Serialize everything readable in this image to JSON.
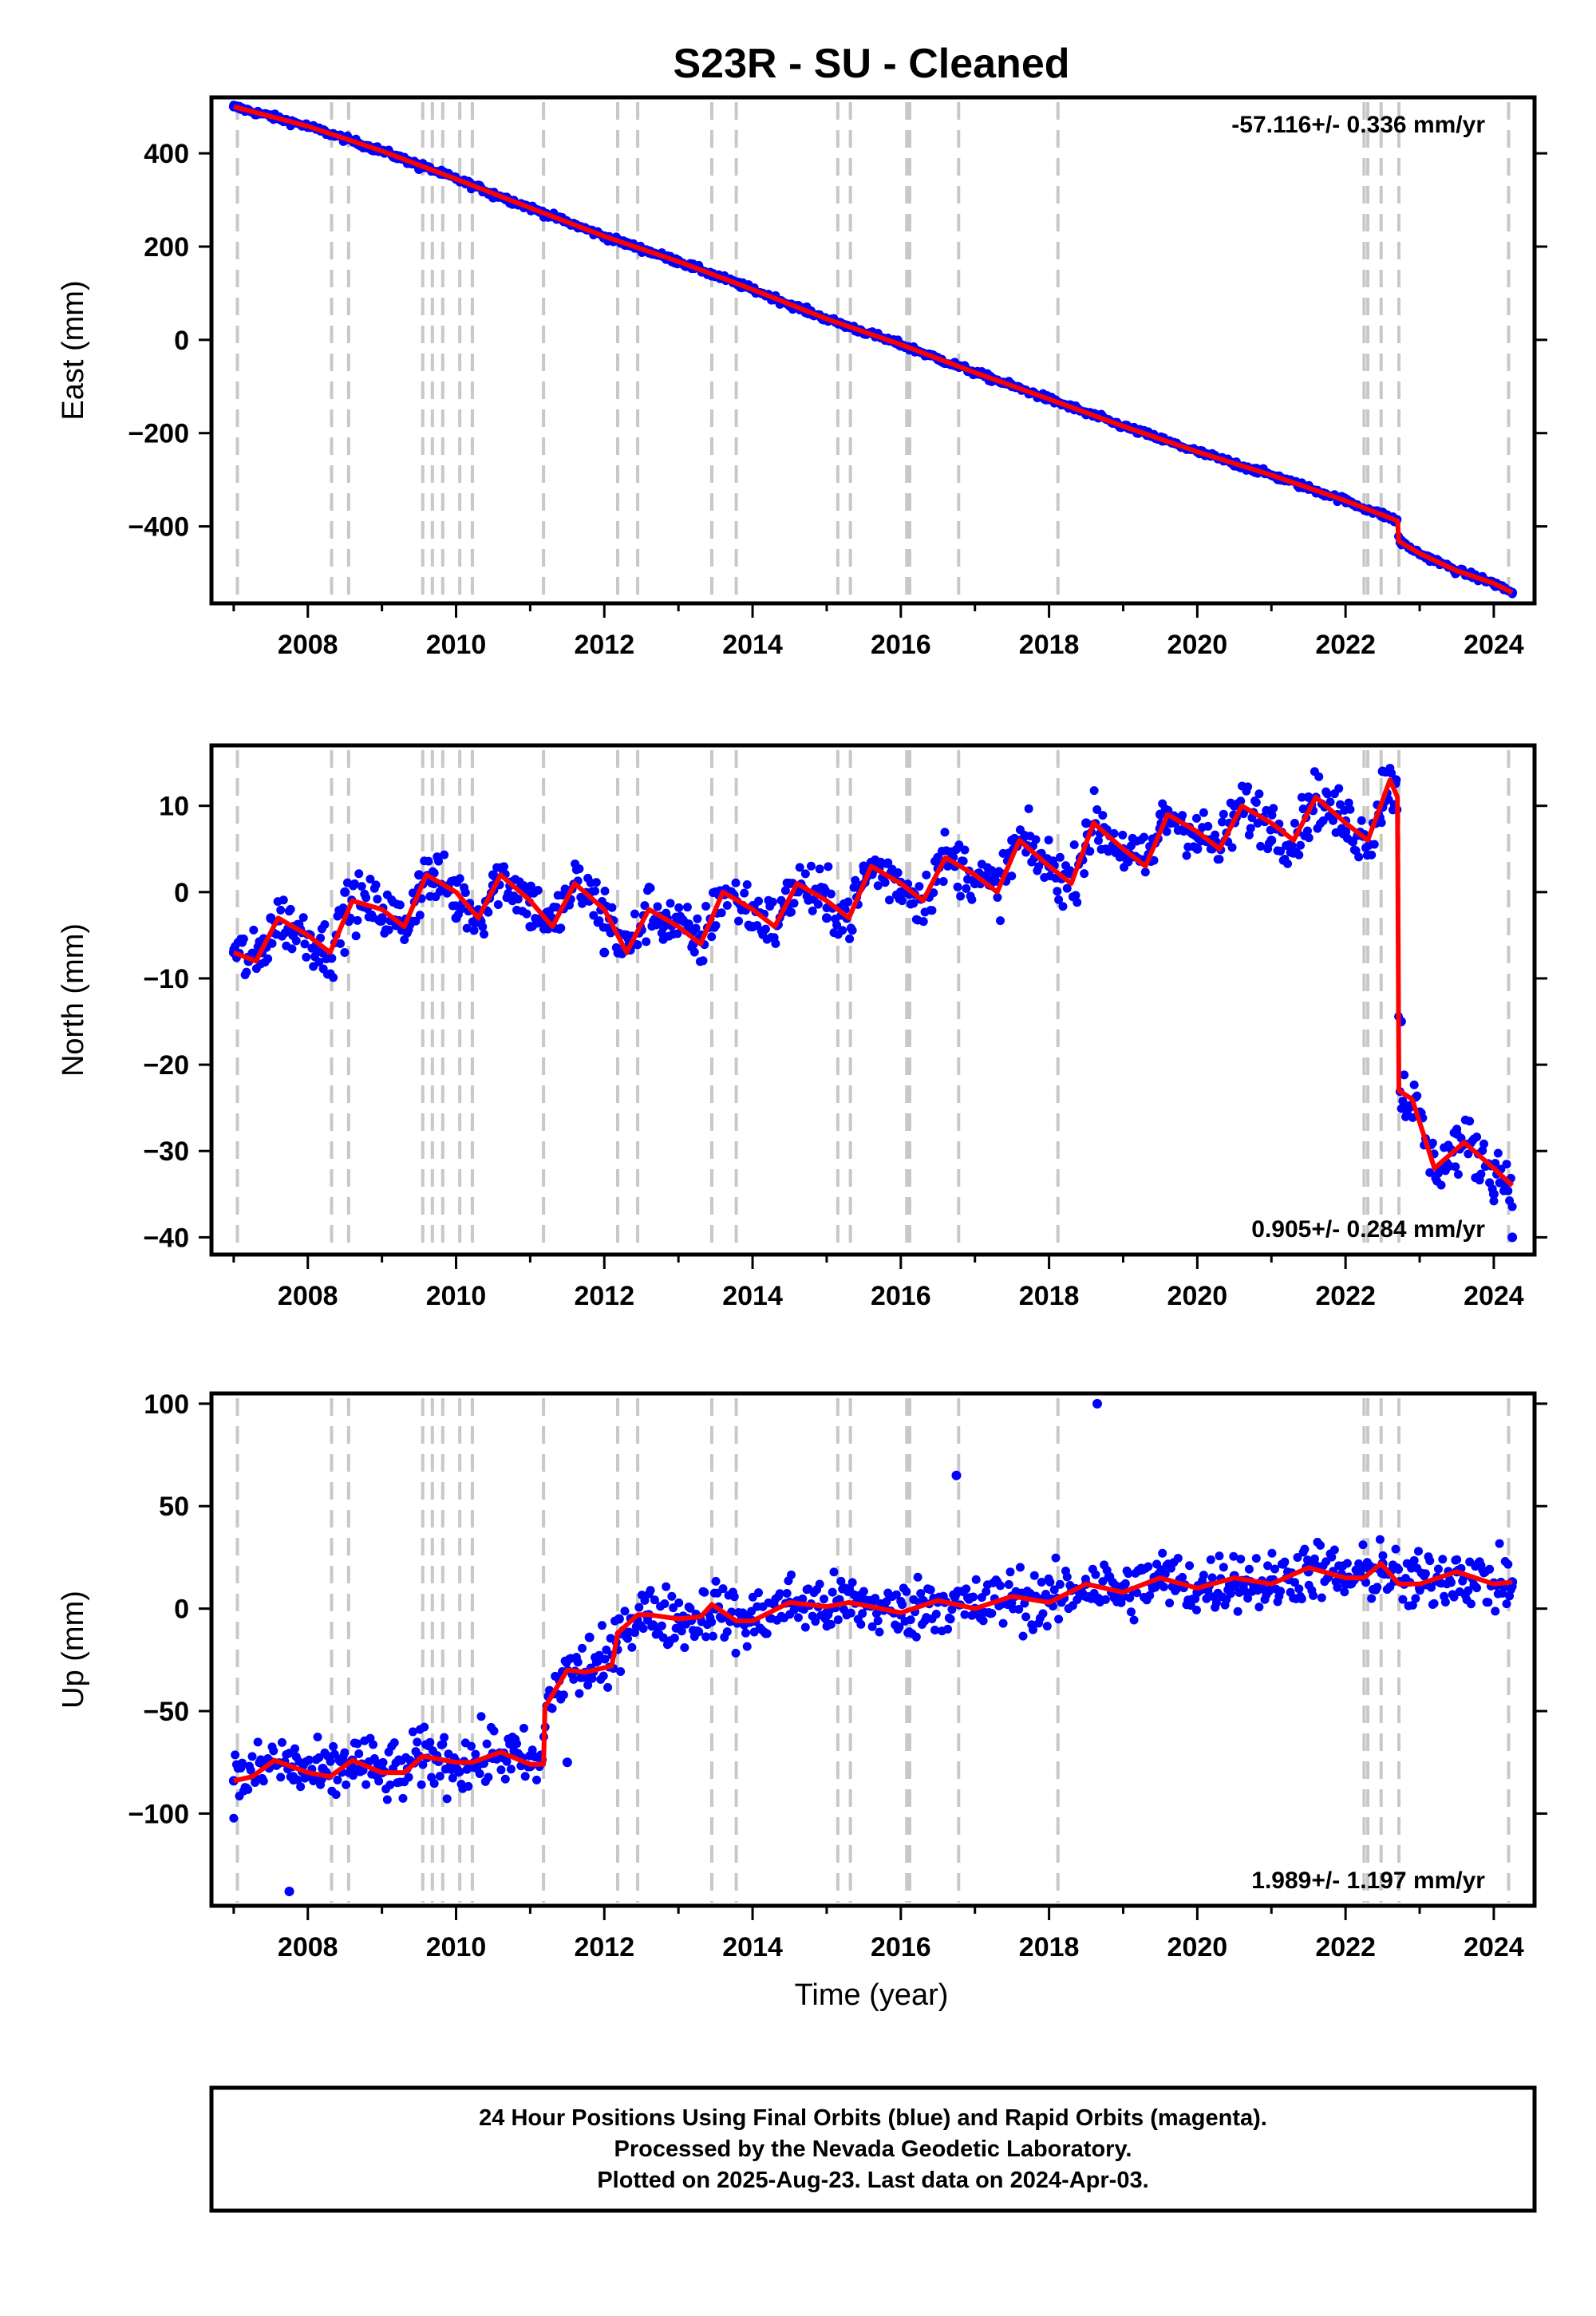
{
  "title": "S23R  - SU - Cleaned",
  "x_axis_label": "Time (year)",
  "colors": {
    "final_orbits": "#0000ff",
    "model": "#ff0000",
    "events": "#c8c8c8",
    "frame": "#000000"
  },
  "footer": {
    "line1": "24 Hour Positions Using Final Orbits (blue) and Rapid Orbits (magenta).",
    "line2": "Processed by the Nevada Geodetic Laboratory.",
    "line3": "Plotted on 2025-Aug-23. Last data on 2024-Apr-03."
  },
  "chart_data": [
    {
      "type": "scatter",
      "ylabel": "East (mm)",
      "rate_label": "-57.116+/- 0.336 mm/yr",
      "rate_position": "top-right",
      "xlim": [
        2006.7,
        2024.55
      ],
      "ylim": [
        -565,
        520
      ],
      "x_ticks": [
        2008,
        2010,
        2012,
        2014,
        2016,
        2018,
        2020,
        2022,
        2024
      ],
      "y_ticks": [
        400,
        200,
        0,
        -200,
        -400
      ],
      "y_tick_labels": [
        "400",
        "200",
        "0",
        "−200",
        "−400"
      ],
      "event_lines": [
        2007.05,
        2008.32,
        2008.55,
        2009.55,
        2009.68,
        2009.82,
        2010.05,
        2010.22,
        2011.18,
        2012.18,
        2012.45,
        2013.45,
        2013.78,
        2015.15,
        2015.32,
        2016.08,
        2016.12,
        2016.78,
        2018.12,
        2022.25,
        2022.3,
        2022.48,
        2022.72,
        2024.2
      ],
      "series": [
        {
          "kind": "points",
          "x": [
            2007.0,
            2007.5,
            2008.0,
            2008.5,
            2009.0,
            2009.5,
            2010.0,
            2010.5,
            2011.0,
            2011.5,
            2012.0,
            2012.5,
            2013.0,
            2013.5,
            2014.0,
            2014.5,
            2015.0,
            2015.5,
            2016.0,
            2016.5,
            2017.0,
            2017.5,
            2018.0,
            2018.5,
            2019.0,
            2019.5,
            2020.0,
            2020.5,
            2021.0,
            2021.5,
            2022.0,
            2022.5,
            2022.68,
            2022.75,
            2023.0,
            2023.5,
            2024.0,
            2024.25
          ],
          "y": [
            500,
            482,
            456,
            428,
            405,
            366,
            345,
            305,
            282,
            252,
            222,
            192,
            170,
            136,
            108,
            73,
            43,
            15,
            -10,
            -42,
            -72,
            -100,
            -125,
            -160,
            -185,
            -212,
            -240,
            -270,
            -290,
            -320,
            -345,
            -370,
            -390,
            -430,
            -460,
            -495,
            -523,
            -542
          ]
        },
        {
          "kind": "model",
          "x": [
            2007.0,
            2008.0,
            2009.0,
            2010.0,
            2011.0,
            2012.0,
            2013.0,
            2014.0,
            2015.0,
            2016.0,
            2017.0,
            2018.0,
            2019.0,
            2020.0,
            2021.0,
            2022.0,
            2022.7,
            2022.72,
            2023.0,
            2023.5,
            2024.0,
            2024.25
          ],
          "y": [
            500,
            458,
            405,
            345,
            283,
            222,
            168,
            108,
            45,
            -10,
            -70,
            -127,
            -185,
            -240,
            -290,
            -345,
            -388,
            -432,
            -458,
            -495,
            -522,
            -542
          ]
        }
      ]
    },
    {
      "type": "scatter",
      "ylabel": "North (mm)",
      "rate_label": "0.905+/- 0.284 mm/yr",
      "rate_position": "bottom-right",
      "xlim": [
        2006.7,
        2024.55
      ],
      "ylim": [
        -42,
        17
      ],
      "x_ticks": [
        2008,
        2010,
        2012,
        2014,
        2016,
        2018,
        2020,
        2022,
        2024
      ],
      "y_ticks": [
        10,
        0,
        -10,
        -20,
        -30,
        -40
      ],
      "y_tick_labels": [
        "10",
        "0",
        "−10",
        "−20",
        "−30",
        "−40"
      ],
      "event_lines": [
        2007.05,
        2008.32,
        2008.55,
        2009.55,
        2009.68,
        2009.82,
        2010.05,
        2010.22,
        2011.18,
        2012.18,
        2012.45,
        2013.45,
        2013.78,
        2015.15,
        2015.32,
        2016.08,
        2016.12,
        2016.78,
        2018.12,
        2022.25,
        2022.3,
        2022.48,
        2022.72,
        2024.2
      ],
      "series": [
        {
          "kind": "points",
          "x": [
            2007.0,
            2007.2,
            2007.5,
            2007.8,
            2008.2,
            2008.5,
            2009.0,
            2009.5,
            2009.7,
            2010.0,
            2010.5,
            2011.0,
            2011.5,
            2012.0,
            2012.3,
            2012.8,
            2013.2,
            2013.5,
            2014.0,
            2014.5,
            2015.0,
            2015.5,
            2016.0,
            2016.5,
            2017.0,
            2017.5,
            2018.0,
            2018.5,
            2019.0,
            2019.5,
            2020.0,
            2020.5,
            2021.0,
            2021.5,
            2022.0,
            2022.5,
            2022.68,
            2022.75,
            2023.0,
            2023.3,
            2023.5,
            2023.8,
            2024.0,
            2024.25
          ],
          "y": [
            -7,
            -8,
            -3,
            -5,
            -7,
            0,
            -3,
            2,
            1,
            -3,
            2,
            -4,
            0,
            -7,
            -5,
            -4,
            -6,
            0,
            -4,
            1,
            -3,
            3,
            0,
            4,
            1,
            6,
            3,
            8,
            5,
            9,
            5,
            10,
            6,
            11,
            7,
            14,
            13,
            -15,
            -26,
            -32,
            -28,
            -33,
            -35,
            -40
          ]
        },
        {
          "kind": "model",
          "x": [
            2007.0,
            2007.3,
            2007.6,
            2008.0,
            2008.3,
            2008.6,
            2009.0,
            2009.3,
            2009.6,
            2010.0,
            2010.3,
            2010.6,
            2011.0,
            2011.3,
            2011.6,
            2012.0,
            2012.3,
            2012.6,
            2013.0,
            2013.3,
            2013.6,
            2014.0,
            2014.3,
            2014.6,
            2015.0,
            2015.3,
            2015.6,
            2016.0,
            2016.3,
            2016.6,
            2017.0,
            2017.3,
            2017.6,
            2018.0,
            2018.3,
            2018.6,
            2019.0,
            2019.3,
            2019.6,
            2020.0,
            2020.3,
            2020.6,
            2021.0,
            2021.3,
            2021.6,
            2022.0,
            2022.3,
            2022.6,
            2022.7,
            2022.72,
            2022.9,
            2023.2,
            2023.6,
            2024.0,
            2024.25
          ],
          "y": [
            -7,
            -8,
            -3,
            -5,
            -7,
            -1,
            -2,
            -4,
            2,
            0,
            -3,
            2,
            -1,
            -4,
            1,
            -2,
            -7,
            -2,
            -4,
            -6,
            0,
            -2,
            -4,
            1,
            -1,
            -3,
            3,
            1,
            -1,
            4,
            2,
            0,
            6,
            3,
            1,
            8,
            5,
            3,
            9,
            7,
            5,
            10,
            8,
            6,
            11,
            8,
            6,
            13,
            11,
            -23,
            -24,
            -32,
            -29,
            -32,
            -34
          ]
        }
      ]
    },
    {
      "type": "scatter",
      "ylabel": "Up (mm)",
      "rate_label": "1.989+/- 1.197 mm/yr",
      "rate_position": "bottom-right",
      "xlim": [
        2006.7,
        2024.55
      ],
      "ylim": [
        -145,
        105
      ],
      "x_ticks": [
        2008,
        2010,
        2012,
        2014,
        2016,
        2018,
        2020,
        2022,
        2024
      ],
      "y_ticks": [
        100,
        50,
        0,
        -50,
        -100
      ],
      "y_tick_labels": [
        "100",
        "50",
        "0",
        "−50",
        "−100"
      ],
      "event_lines": [
        2007.05,
        2008.32,
        2008.55,
        2009.55,
        2009.68,
        2009.82,
        2010.05,
        2010.22,
        2011.18,
        2012.18,
        2012.45,
        2013.45,
        2013.78,
        2015.15,
        2015.32,
        2016.08,
        2016.12,
        2016.78,
        2018.12,
        2022.25,
        2022.3,
        2022.48,
        2022.72,
        2024.2
      ],
      "series": [
        {
          "kind": "points",
          "x": [
            2007.0,
            2007.4,
            2007.8,
            2008.2,
            2008.6,
            2009.0,
            2009.5,
            2010.0,
            2010.5,
            2011.0,
            2011.5,
            2011.8,
            2012.2,
            2012.6,
            2013.0,
            2013.5,
            2014.0,
            2014.5,
            2015.0,
            2015.5,
            2016.0,
            2016.5,
            2017.0,
            2017.5,
            2018.0,
            2018.5,
            2019.0,
            2019.5,
            2020.0,
            2020.5,
            2021.0,
            2021.5,
            2022.0,
            2022.5,
            2023.0,
            2023.5,
            2024.0,
            2024.25,
            2007.75,
            2018.65,
            2016.75
          ],
          "y": [
            -84,
            -76,
            -82,
            -78,
            -74,
            -80,
            -72,
            -78,
            -73,
            -77,
            -75,
            -14,
            -5,
            -3,
            -5,
            0,
            -6,
            3,
            -2,
            4,
            -3,
            4,
            0,
            6,
            3,
            12,
            6,
            14,
            8,
            16,
            10,
            18,
            12,
            22,
            10,
            18,
            12,
            13,
            -138,
            100,
            65
          ]
        },
        {
          "kind": "model",
          "x": [
            2007.0,
            2007.25,
            2007.55,
            2008.0,
            2008.3,
            2008.6,
            2009.0,
            2009.3,
            2009.55,
            2010.0,
            2010.22,
            2010.6,
            2011.0,
            2011.18,
            2011.2,
            2011.5,
            2011.75,
            2012.1,
            2012.18,
            2012.45,
            2012.6,
            2013.0,
            2013.3,
            2013.45,
            2013.78,
            2014.0,
            2014.5,
            2015.0,
            2015.3,
            2015.6,
            2016.0,
            2016.5,
            2017.0,
            2017.5,
            2018.0,
            2018.5,
            2019.0,
            2019.5,
            2020.0,
            2020.5,
            2021.0,
            2021.5,
            2022.0,
            2022.25,
            2022.48,
            2022.72,
            2023.0,
            2023.5,
            2024.0,
            2024.25
          ],
          "y": [
            -84,
            -82,
            -74,
            -80,
            -82,
            -74,
            -80,
            -80,
            -72,
            -75,
            -75,
            -70,
            -76,
            -76,
            -48,
            -30,
            -31,
            -28,
            -12,
            -3,
            -3,
            -5,
            -4,
            2,
            -6,
            -6,
            3,
            1,
            3,
            1,
            -2,
            4,
            0,
            6,
            3,
            12,
            8,
            15,
            10,
            15,
            12,
            20,
            15,
            15,
            22,
            12,
            12,
            18,
            12,
            13
          ]
        }
      ]
    }
  ]
}
